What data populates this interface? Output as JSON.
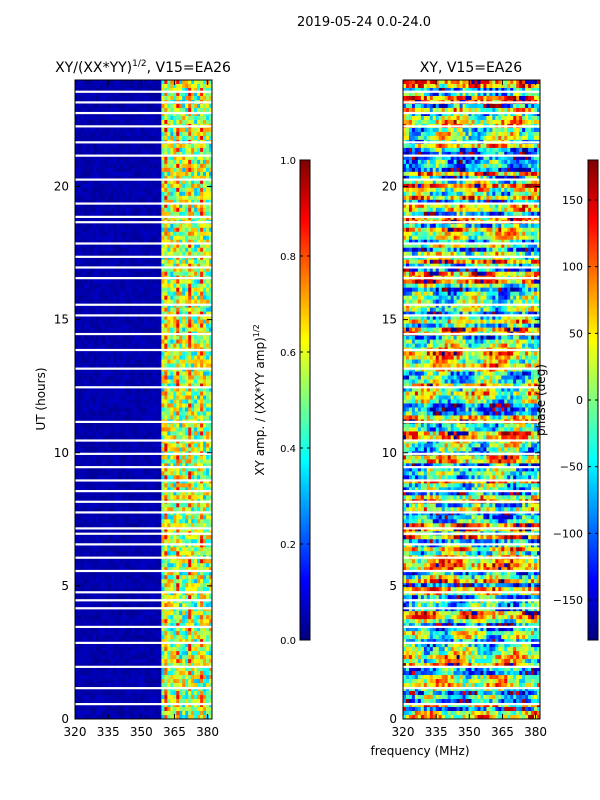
{
  "figure_title": "2019-05-24 0.0-24.0",
  "shared_xlabel": "frequency (MHz)",
  "colors": {
    "jet": [
      "#00007f",
      "#0000ff",
      "#007fff",
      "#00ffff",
      "#7fff7f",
      "#ffff00",
      "#ff7f00",
      "#ff0000",
      "#7f0000"
    ]
  },
  "chart_data": [
    {
      "type": "heatmap",
      "title_main": "XY/(XX*YY)",
      "title_sup": "1/2",
      "title_rest": ", V15=EA26",
      "xlabel": "",
      "ylabel": "UT (hours)",
      "xlim": [
        320,
        382
      ],
      "ylim": [
        0,
        24
      ],
      "xticks": [
        320,
        335,
        350,
        365,
        380
      ],
      "yticks": [
        0,
        5,
        10,
        15,
        20
      ],
      "colorbar": {
        "label_main": "XY amp. / (XX*YY amp)",
        "label_sup": "1/2",
        "range": [
          0.0,
          1.0
        ],
        "ticks": [
          "0.0",
          "0.2",
          "0.4",
          "0.6",
          "0.8",
          "1.0"
        ],
        "tick_values": [
          0.0,
          0.2,
          0.4,
          0.6,
          0.8,
          1.0
        ]
      }
    },
    {
      "type": "heatmap",
      "title_main": "XY, V15=EA26",
      "title_sup": "",
      "title_rest": "",
      "xlabel": "frequency (MHz)",
      "ylabel": "",
      "xlim": [
        320,
        382
      ],
      "ylim": [
        0,
        24
      ],
      "xticks": [
        320,
        335,
        350,
        365,
        380
      ],
      "yticks": [
        0,
        5,
        10,
        15,
        20
      ],
      "colorbar": {
        "label_main": "phase (deg)",
        "label_sup": "",
        "range": [
          -180,
          180
        ],
        "ticks": [
          "−150",
          "−100",
          "−50",
          "0",
          "50",
          "100",
          "150"
        ],
        "tick_values": [
          -150,
          -100,
          -50,
          0,
          50,
          100,
          150
        ]
      }
    }
  ]
}
